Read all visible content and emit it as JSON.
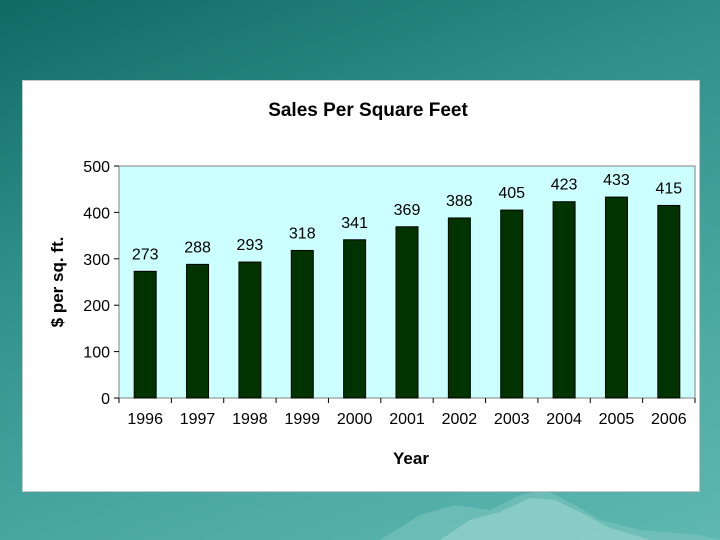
{
  "chart_data": {
    "type": "bar",
    "title": "Sales Per Square Feet",
    "xlabel": "Year",
    "ylabel": "$ per sq. ft.",
    "categories": [
      "1996",
      "1997",
      "1998",
      "1999",
      "2000",
      "2001",
      "2002",
      "2003",
      "2004",
      "2005",
      "2006"
    ],
    "values": [
      273,
      288,
      293,
      318,
      341,
      369,
      388,
      405,
      423,
      433,
      415
    ],
    "ylim": [
      0,
      500
    ],
    "yticks": [
      0,
      100,
      200,
      300,
      400,
      500
    ],
    "grid": false,
    "legend": "none",
    "colors": {
      "bar": "#003300",
      "plot_background": "#ccffff",
      "slide_background": "#2f8f8a"
    }
  }
}
